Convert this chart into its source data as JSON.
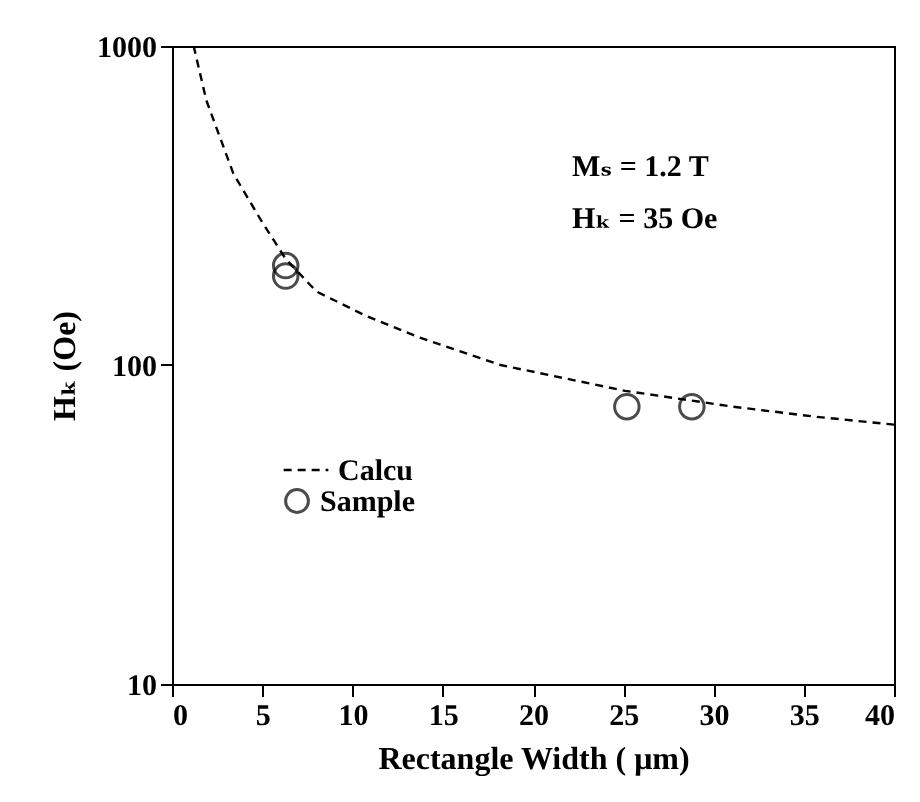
{
  "chart_data": {
    "type": "line",
    "xlabel": "Rectangle Width ( μm)",
    "ylabel": "Hₖ (Oe)",
    "log": "y",
    "xlim": [
      0,
      40
    ],
    "xticks": [
      0,
      5,
      10,
      15,
      20,
      25,
      30,
      35,
      40
    ],
    "ylim": [
      10,
      1000
    ],
    "yticks": [
      10,
      100,
      1000
    ],
    "grid": false,
    "legend": "bottom left",
    "annotations": [
      "Mₛ = 1.2 T",
      "Hₖ = 35 Oe"
    ],
    "series": [
      {
        "name": "Calcu",
        "line_style": "dashed",
        "color": "#000000",
        "x": [
          1.2,
          1.9,
          3.4,
          5,
          6.3,
          8,
          10.7,
          13.7,
          18.2,
          25.1,
          31.1,
          35.5,
          40
        ],
        "values": [
          1000,
          676,
          398,
          280,
          215,
          170,
          143,
          122,
          100,
          83,
          74,
          69,
          65
        ]
      },
      {
        "name": "Sample",
        "type": "scatter",
        "marker": "circle",
        "color": "#000000",
        "x": [
          6.3,
          6.3,
          25.2,
          28.8
        ],
        "values": [
          205,
          190,
          74,
          74
        ]
      }
    ]
  }
}
